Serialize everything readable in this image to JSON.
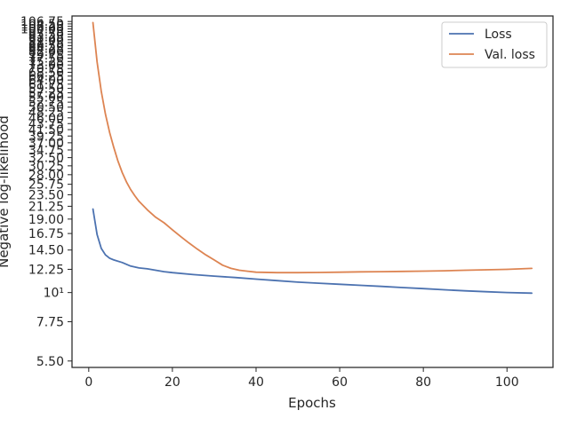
{
  "chart_data": {
    "type": "line",
    "xlabel": "Epochs",
    "ylabel": "Negative log-likelihood",
    "yscale": "log",
    "xlim": [
      -4,
      111
    ],
    "ylim": [
      5.2,
      112
    ],
    "xticks": [
      0,
      20,
      40,
      60,
      80,
      100
    ],
    "xtick_labels": [
      "0",
      "20",
      "40",
      "60",
      "80",
      "100"
    ],
    "yticks": [
      5.5,
      7.75,
      10,
      12.25,
      14.5,
      16.75,
      19,
      21.25,
      23.5,
      25.75,
      28,
      30.25,
      32.5,
      34.75,
      37,
      39.25,
      41.5,
      43.75,
      46,
      48.25,
      50.5,
      52.75,
      55,
      57.25,
      59.5,
      61.75,
      64,
      66.25,
      68.5,
      70.75,
      73,
      75.25,
      77.5,
      79.75,
      82,
      84.25,
      86.5,
      88.75,
      91,
      93.25,
      95.5,
      97.75,
      100,
      102.25,
      104.5,
      106.75
    ],
    "ytick_labels": [
      "5.50",
      "7.75",
      "10¹",
      "12.25",
      "14.50",
      "16.75",
      "19.00",
      "21.25",
      "23.50",
      "25.75",
      "28.00",
      "30.25",
      "32.50",
      "34.75",
      "37.00",
      "39.25",
      "41.50",
      "43.75",
      "46.00",
      "48.25",
      "50.50",
      "52.75",
      "55.00",
      "57.25",
      "59.50",
      "61.75",
      "64.00",
      "66.25",
      "68.50",
      "70.75",
      "73.00",
      "75.25",
      "77.50",
      "79.75",
      "82.00",
      "84.25",
      "86.50",
      "88.75",
      "91.00",
      "93.25",
      "95.50",
      "97.75",
      "100.00",
      "102.25",
      "104.50",
      "106.75"
    ],
    "legend_position": "top-right",
    "grid": false,
    "series": [
      {
        "name": "Loss",
        "color": "#4c72b0",
        "x": [
          1,
          2,
          3,
          4,
          5,
          6,
          8,
          10,
          12,
          14,
          16,
          18,
          20,
          25,
          30,
          35,
          40,
          45,
          50,
          55,
          60,
          65,
          70,
          75,
          80,
          85,
          90,
          95,
          100,
          106
        ],
        "y": [
          20.8,
          16.6,
          14.7,
          13.9,
          13.5,
          13.3,
          13.0,
          12.6,
          12.4,
          12.3,
          12.15,
          12.0,
          11.9,
          11.7,
          11.55,
          11.4,
          11.25,
          11.1,
          10.95,
          10.85,
          10.75,
          10.65,
          10.55,
          10.45,
          10.35,
          10.25,
          10.15,
          10.07,
          10.0,
          9.95
        ]
      },
      {
        "name": "Val. loss",
        "color": "#dd8452",
        "x": [
          1,
          2,
          3,
          4,
          5,
          6,
          7,
          8,
          9,
          10,
          11,
          12,
          14,
          16,
          18,
          20,
          22,
          24,
          26,
          28,
          30,
          32,
          34,
          36,
          38,
          40,
          45,
          50,
          55,
          60,
          65,
          70,
          75,
          80,
          85,
          90,
          95,
          100,
          106
        ],
        "y": [
          106.0,
          75.0,
          58.0,
          47.5,
          40.5,
          35.5,
          31.5,
          28.5,
          26.3,
          24.6,
          23.3,
          22.2,
          20.6,
          19.3,
          18.4,
          17.3,
          16.3,
          15.4,
          14.6,
          13.9,
          13.3,
          12.7,
          12.35,
          12.15,
          12.05,
          11.95,
          11.9,
          11.9,
          11.92,
          11.95,
          11.98,
          12.0,
          12.03,
          12.06,
          12.1,
          12.15,
          12.2,
          12.25,
          12.35
        ]
      }
    ]
  }
}
